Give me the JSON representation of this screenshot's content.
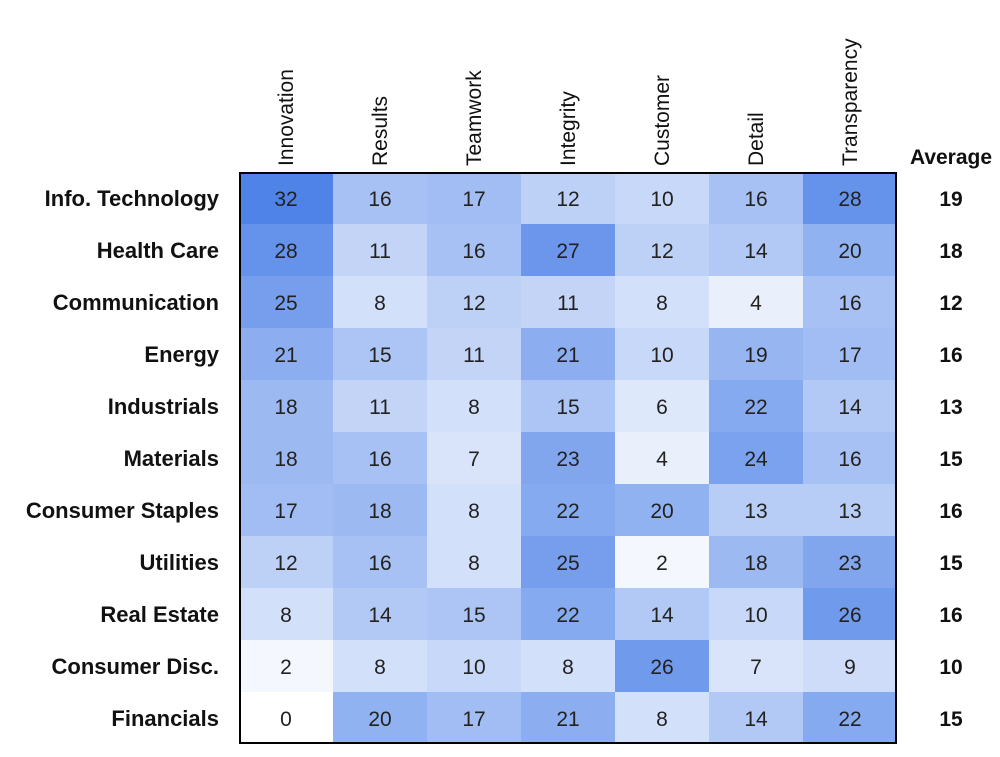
{
  "chart_data": {
    "type": "heatmap",
    "title": "",
    "columns": [
      "Innovation",
      "Results",
      "Teamwork",
      "Integrity",
      "Customer",
      "Detail",
      "Transparency"
    ],
    "rows": [
      "Info. Technology",
      "Health Care",
      "Communication",
      "Energy",
      "Industrials",
      "Materials",
      "Consumer Staples",
      "Utilities",
      "Real Estate",
      "Consumer Disc.",
      "Financials"
    ],
    "values": [
      [
        32,
        16,
        17,
        12,
        10,
        16,
        28
      ],
      [
        28,
        11,
        16,
        27,
        12,
        14,
        20
      ],
      [
        25,
        8,
        12,
        11,
        8,
        4,
        16
      ],
      [
        21,
        15,
        11,
        21,
        10,
        19,
        17
      ],
      [
        18,
        11,
        8,
        15,
        6,
        22,
        14
      ],
      [
        18,
        16,
        7,
        23,
        4,
        24,
        16
      ],
      [
        17,
        18,
        8,
        22,
        20,
        13,
        13
      ],
      [
        12,
        16,
        8,
        25,
        2,
        18,
        23
      ],
      [
        8,
        14,
        15,
        22,
        14,
        10,
        26
      ],
      [
        2,
        8,
        10,
        8,
        26,
        7,
        9
      ],
      [
        0,
        20,
        17,
        21,
        8,
        14,
        22
      ]
    ],
    "average_header": "Average",
    "averages": [
      19,
      18,
      12,
      16,
      13,
      15,
      16,
      15,
      16,
      10,
      15
    ],
    "value_range": [
      0,
      32
    ],
    "colors": {
      "low": "#ffffff",
      "high": "#4f83e8"
    }
  }
}
